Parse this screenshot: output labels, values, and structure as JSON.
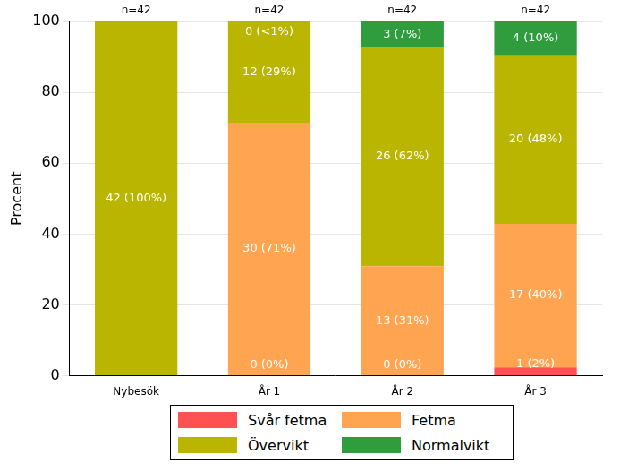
{
  "chart_data": {
    "type": "bar",
    "stacked": true,
    "categories": [
      "Nybesök",
      "År 1",
      "År 2",
      "År 3"
    ],
    "annotations": [
      "n=42",
      "n=42",
      "n=42",
      "n=42"
    ],
    "y_label": "Procent",
    "ylim": [
      0,
      100
    ],
    "yticks": [
      0,
      20,
      40,
      60,
      80,
      100
    ],
    "grid": true,
    "legend": "bottom",
    "data_labels": true,
    "series": [
      {
        "name": "Svår fetma",
        "color": "#ff5052",
        "values": [
          0,
          0,
          0,
          2.38
        ],
        "value_labels": [
          null,
          "0 (0%)",
          "0 (0%)",
          "1 (2%)"
        ]
      },
      {
        "name": "Fetma",
        "color": "#ffa552",
        "values": [
          0,
          71.43,
          30.95,
          40.48
        ],
        "value_labels": [
          null,
          "30 (71%)",
          "13 (31%)",
          "17 (40%)"
        ]
      },
      {
        "name": "Övervikt",
        "color": "#b9b500",
        "values": [
          100,
          28.57,
          61.9,
          47.62
        ],
        "value_labels": [
          "42 (100%)",
          "12 (29%)",
          "26 (62%)",
          "20 (48%)"
        ]
      },
      {
        "name": "Normalvikt",
        "color": "#2f9d3e",
        "values": [
          0,
          0,
          7.14,
          9.52
        ],
        "value_labels": [
          null,
          "0 (<1%)",
          "3 (7%)",
          "4 (10%)"
        ]
      }
    ]
  }
}
